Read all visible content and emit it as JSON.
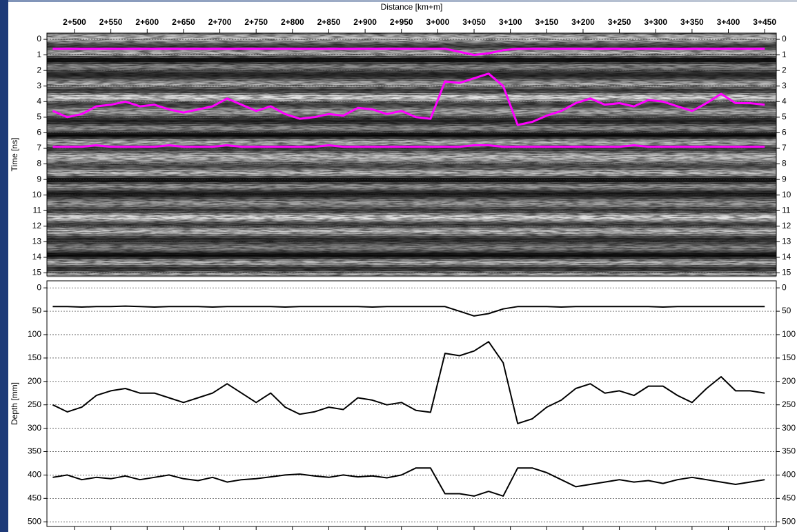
{
  "chart_data": [
    {
      "type": "radargram",
      "x_label": "Distance [km+m]",
      "y_label": "Time [ns]",
      "xlim": [
        2462,
        3466
      ],
      "xticks": [
        {
          "value": 2500,
          "label": "2+500"
        },
        {
          "value": 2550,
          "label": "2+550"
        },
        {
          "value": 2600,
          "label": "2+600"
        },
        {
          "value": 2650,
          "label": "2+650"
        },
        {
          "value": 2700,
          "label": "2+700"
        },
        {
          "value": 2750,
          "label": "2+750"
        },
        {
          "value": 2800,
          "label": "2+800"
        },
        {
          "value": 2850,
          "label": "2+850"
        },
        {
          "value": 2900,
          "label": "2+900"
        },
        {
          "value": 2950,
          "label": "2+950"
        },
        {
          "value": 3000,
          "label": "3+000"
        },
        {
          "value": 3050,
          "label": "3+050"
        },
        {
          "value": 3100,
          "label": "3+100"
        },
        {
          "value": 3150,
          "label": "3+150"
        },
        {
          "value": 3200,
          "label": "3+200"
        },
        {
          "value": 3250,
          "label": "3+250"
        },
        {
          "value": 3300,
          "label": "3+300"
        },
        {
          "value": 3350,
          "label": "3+350"
        },
        {
          "value": 3400,
          "label": "3+400"
        },
        {
          "value": 3450,
          "label": "3+450"
        }
      ],
      "ylim": [
        -0.4,
        15.2
      ],
      "yticks": [
        0,
        1,
        2,
        3,
        4,
        5,
        6,
        7,
        8,
        9,
        10,
        11,
        12,
        13,
        14,
        15
      ],
      "y_inverted": true,
      "grid": true,
      "x": [
        2470,
        2490,
        2510,
        2530,
        2550,
        2570,
        2590,
        2610,
        2630,
        2650,
        2670,
        2690,
        2710,
        2730,
        2750,
        2770,
        2790,
        2810,
        2830,
        2850,
        2870,
        2890,
        2910,
        2930,
        2950,
        2970,
        2990,
        3010,
        3030,
        3050,
        3070,
        3090,
        3110,
        3130,
        3150,
        3170,
        3190,
        3210,
        3230,
        3250,
        3270,
        3290,
        3310,
        3330,
        3350,
        3370,
        3390,
        3410,
        3430,
        3450
      ],
      "series": [
        {
          "color": "#ff00ff",
          "values": [
            0.6,
            0.6,
            0.6,
            0.6,
            0.6,
            0.6,
            0.6,
            0.6,
            0.6,
            0.6,
            0.6,
            0.6,
            0.6,
            0.6,
            0.6,
            0.6,
            0.6,
            0.6,
            0.6,
            0.6,
            0.6,
            0.6,
            0.6,
            0.6,
            0.6,
            0.6,
            0.6,
            0.6,
            0.8,
            1.0,
            0.9,
            0.7,
            0.6,
            0.6,
            0.6,
            0.6,
            0.6,
            0.6,
            0.6,
            0.6,
            0.6,
            0.6,
            0.6,
            0.6,
            0.6,
            0.6,
            0.6,
            0.6,
            0.6,
            0.6
          ]
        },
        {
          "color": "#ff00ff",
          "values": [
            4.6,
            5.0,
            4.8,
            4.3,
            4.2,
            4.0,
            4.3,
            4.2,
            4.5,
            4.7,
            4.5,
            4.3,
            3.8,
            4.2,
            4.6,
            4.3,
            4.8,
            5.1,
            5.0,
            4.8,
            4.9,
            4.4,
            4.5,
            4.8,
            4.6,
            5.0,
            5.1,
            2.7,
            2.8,
            2.5,
            2.2,
            3.0,
            5.5,
            5.3,
            4.9,
            4.6,
            4.1,
            3.8,
            4.2,
            4.1,
            4.3,
            3.9,
            4.0,
            4.3,
            4.6,
            4.1,
            3.5,
            4.1,
            4.1,
            4.2
          ]
        },
        {
          "color": "#ff00ff",
          "values": [
            6.9,
            6.9,
            6.9,
            6.8,
            6.9,
            6.9,
            6.9,
            6.9,
            6.8,
            6.9,
            6.9,
            6.9,
            6.8,
            6.9,
            6.9,
            6.9,
            6.9,
            6.9,
            6.9,
            6.8,
            6.9,
            6.9,
            6.9,
            6.9,
            6.9,
            6.9,
            6.9,
            6.9,
            6.9,
            6.8,
            6.8,
            6.9,
            6.9,
            6.9,
            6.9,
            6.9,
            6.9,
            6.9,
            6.9,
            6.9,
            6.8,
            6.9,
            6.9,
            6.9,
            6.9,
            6.9,
            6.9,
            6.9,
            6.9,
            6.9
          ]
        }
      ]
    },
    {
      "type": "line",
      "y_label": "Depth [mm]",
      "xlim": [
        2462,
        3466
      ],
      "ylim": [
        -15,
        510
      ],
      "yticks": [
        0,
        50,
        100,
        150,
        200,
        250,
        300,
        350,
        400,
        450,
        500
      ],
      "y_inverted": true,
      "grid": true,
      "x": [
        2470,
        2490,
        2510,
        2530,
        2550,
        2570,
        2590,
        2610,
        2630,
        2650,
        2670,
        2690,
        2710,
        2730,
        2750,
        2770,
        2790,
        2810,
        2830,
        2850,
        2870,
        2890,
        2910,
        2930,
        2950,
        2970,
        2990,
        3010,
        3030,
        3050,
        3070,
        3090,
        3110,
        3130,
        3150,
        3170,
        3190,
        3210,
        3230,
        3250,
        3270,
        3290,
        3310,
        3330,
        3350,
        3370,
        3390,
        3410,
        3430,
        3450
      ],
      "series": [
        {
          "color": "#000000",
          "values": [
            40,
            40,
            41,
            40,
            40,
            39,
            40,
            41,
            40,
            40,
            40,
            41,
            40,
            40,
            40,
            40,
            41,
            40,
            40,
            40,
            40,
            40,
            41,
            40,
            40,
            40,
            40,
            40,
            50,
            60,
            55,
            45,
            40,
            40,
            40,
            41,
            40,
            40,
            40,
            40,
            40,
            40,
            41,
            40,
            40,
            40,
            40,
            40,
            40,
            40
          ]
        },
        {
          "color": "#000000",
          "values": [
            250,
            265,
            255,
            230,
            220,
            215,
            225,
            225,
            235,
            245,
            235,
            225,
            205,
            225,
            245,
            225,
            255,
            270,
            265,
            255,
            260,
            235,
            240,
            250,
            245,
            262,
            266,
            140,
            145,
            135,
            115,
            160,
            290,
            280,
            255,
            240,
            215,
            205,
            225,
            220,
            230,
            210,
            210,
            230,
            245,
            215,
            190,
            220,
            220,
            225
          ]
        },
        {
          "color": "#000000",
          "values": [
            405,
            400,
            410,
            405,
            408,
            402,
            410,
            405,
            400,
            408,
            412,
            405,
            415,
            410,
            408,
            404,
            400,
            398,
            402,
            405,
            400,
            404,
            402,
            406,
            400,
            385,
            385,
            440,
            440,
            445,
            435,
            445,
            385,
            385,
            395,
            410,
            425,
            420,
            415,
            410,
            415,
            412,
            418,
            410,
            405,
            410,
            415,
            420,
            415,
            410
          ]
        }
      ]
    }
  ]
}
